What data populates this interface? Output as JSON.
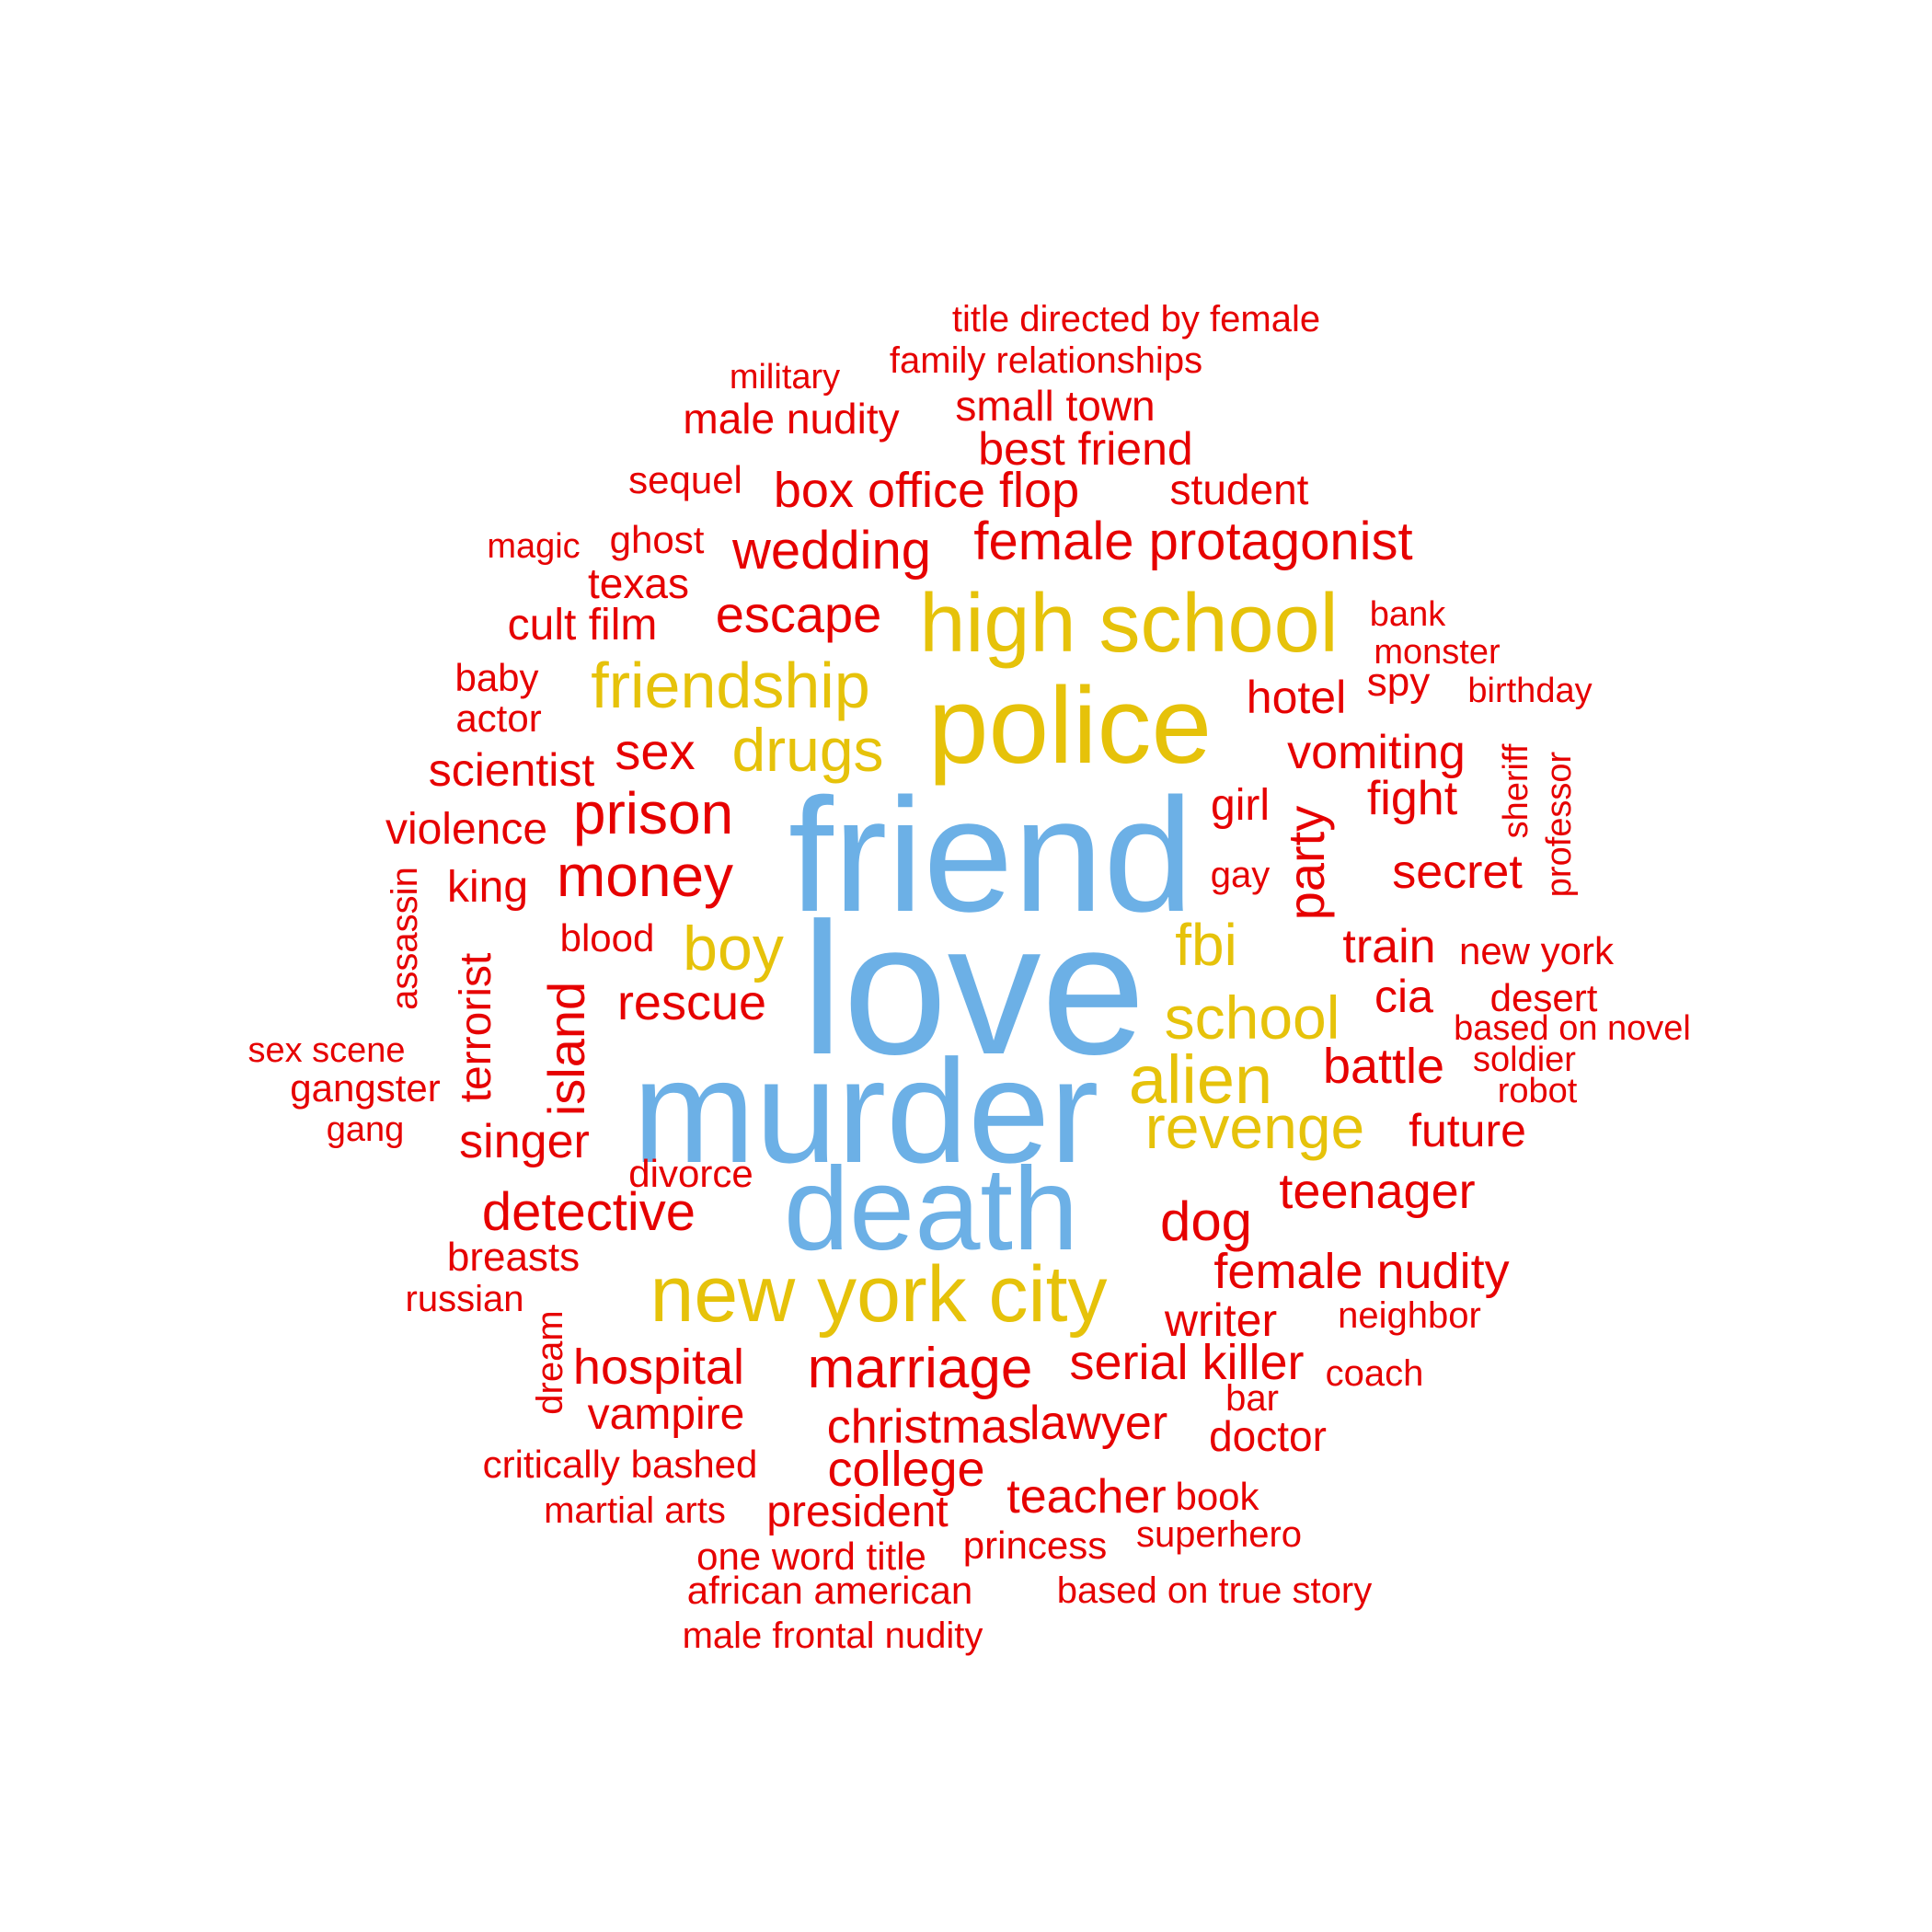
{
  "colors": {
    "tier1": "#6cb0e6",
    "tier2": "#e6c20a",
    "tier3": "#e60000"
  },
  "words": [
    {
      "text": "love",
      "tier": 1,
      "size": 5
    },
    {
      "text": "friend",
      "tier": 1,
      "size": 5
    },
    {
      "text": "murder",
      "tier": 1,
      "size": 5
    },
    {
      "text": "death",
      "tier": 1,
      "size": 5
    },
    {
      "text": "police",
      "tier": 2,
      "size": 4
    },
    {
      "text": "high school",
      "tier": 2,
      "size": 4
    },
    {
      "text": "new york city",
      "tier": 2,
      "size": 4
    },
    {
      "text": "friendship",
      "tier": 2,
      "size": 3
    },
    {
      "text": "drugs",
      "tier": 2,
      "size": 3
    },
    {
      "text": "boy",
      "tier": 2,
      "size": 3
    },
    {
      "text": "fbi",
      "tier": 2,
      "size": 3
    },
    {
      "text": "school",
      "tier": 2,
      "size": 3
    },
    {
      "text": "alien",
      "tier": 2,
      "size": 3
    },
    {
      "text": "revenge",
      "tier": 2,
      "size": 3
    },
    {
      "text": "title directed by female",
      "tier": 3,
      "size": 1
    },
    {
      "text": "family relationships",
      "tier": 3,
      "size": 1
    },
    {
      "text": "military",
      "tier": 3,
      "size": 1
    },
    {
      "text": "male nudity",
      "tier": 3,
      "size": 2
    },
    {
      "text": "small town",
      "tier": 3,
      "size": 2
    },
    {
      "text": "best friend",
      "tier": 3,
      "size": 2
    },
    {
      "text": "sequel",
      "tier": 3,
      "size": 1
    },
    {
      "text": "box office flop",
      "tier": 3,
      "size": 2
    },
    {
      "text": "student",
      "tier": 3,
      "size": 2
    },
    {
      "text": "magic",
      "tier": 3,
      "size": 1
    },
    {
      "text": "ghost",
      "tier": 3,
      "size": 1
    },
    {
      "text": "wedding",
      "tier": 3,
      "size": 2
    },
    {
      "text": "female protagonist",
      "tier": 3,
      "size": 2
    },
    {
      "text": "texas",
      "tier": 3,
      "size": 2
    },
    {
      "text": "escape",
      "tier": 3,
      "size": 2
    },
    {
      "text": "cult film",
      "tier": 3,
      "size": 2
    },
    {
      "text": "bank",
      "tier": 3,
      "size": 1
    },
    {
      "text": "monster",
      "tier": 3,
      "size": 1
    },
    {
      "text": "baby",
      "tier": 3,
      "size": 1
    },
    {
      "text": "spy",
      "tier": 3,
      "size": 1
    },
    {
      "text": "birthday",
      "tier": 3,
      "size": 1
    },
    {
      "text": "hotel",
      "tier": 3,
      "size": 2
    },
    {
      "text": "actor",
      "tier": 3,
      "size": 1
    },
    {
      "text": "sex",
      "tier": 3,
      "size": 2
    },
    {
      "text": "scientist",
      "tier": 3,
      "size": 2
    },
    {
      "text": "vomiting",
      "tier": 3,
      "size": 2
    },
    {
      "text": "sheriff",
      "tier": 3,
      "size": 1
    },
    {
      "text": "professor",
      "tier": 3,
      "size": 1
    },
    {
      "text": "fight",
      "tier": 3,
      "size": 2
    },
    {
      "text": "prison",
      "tier": 3,
      "size": 2
    },
    {
      "text": "girl",
      "tier": 3,
      "size": 2
    },
    {
      "text": "violence",
      "tier": 3,
      "size": 2
    },
    {
      "text": "party",
      "tier": 3,
      "size": 2
    },
    {
      "text": "money",
      "tier": 3,
      "size": 2
    },
    {
      "text": "king",
      "tier": 3,
      "size": 2
    },
    {
      "text": "gay",
      "tier": 3,
      "size": 1
    },
    {
      "text": "secret",
      "tier": 3,
      "size": 2
    },
    {
      "text": "assassin",
      "tier": 3,
      "size": 1
    },
    {
      "text": "blood",
      "tier": 3,
      "size": 1
    },
    {
      "text": "train",
      "tier": 3,
      "size": 2
    },
    {
      "text": "new york",
      "tier": 3,
      "size": 1
    },
    {
      "text": "terrorist",
      "tier": 3,
      "size": 2
    },
    {
      "text": "island",
      "tier": 3,
      "size": 2
    },
    {
      "text": "rescue",
      "tier": 3,
      "size": 2
    },
    {
      "text": "cia",
      "tier": 3,
      "size": 2
    },
    {
      "text": "desert",
      "tier": 3,
      "size": 1
    },
    {
      "text": "based on novel",
      "tier": 3,
      "size": 1
    },
    {
      "text": "sex scene",
      "tier": 3,
      "size": 1
    },
    {
      "text": "soldier",
      "tier": 3,
      "size": 1
    },
    {
      "text": "battle",
      "tier": 3,
      "size": 2
    },
    {
      "text": "gangster",
      "tier": 3,
      "size": 1
    },
    {
      "text": "robot",
      "tier": 3,
      "size": 1
    },
    {
      "text": "gang",
      "tier": 3,
      "size": 1
    },
    {
      "text": "future",
      "tier": 3,
      "size": 2
    },
    {
      "text": "singer",
      "tier": 3,
      "size": 2
    },
    {
      "text": "divorce",
      "tier": 3,
      "size": 1
    },
    {
      "text": "teenager",
      "tier": 3,
      "size": 2
    },
    {
      "text": "detective",
      "tier": 3,
      "size": 2
    },
    {
      "text": "dog",
      "tier": 3,
      "size": 2
    },
    {
      "text": "breasts",
      "tier": 3,
      "size": 1
    },
    {
      "text": "female nudity",
      "tier": 3,
      "size": 2
    },
    {
      "text": "russian",
      "tier": 3,
      "size": 1
    },
    {
      "text": "writer",
      "tier": 3,
      "size": 2
    },
    {
      "text": "neighbor",
      "tier": 3,
      "size": 1
    },
    {
      "text": "dream",
      "tier": 3,
      "size": 1
    },
    {
      "text": "hospital",
      "tier": 3,
      "size": 2
    },
    {
      "text": "marriage",
      "tier": 3,
      "size": 2
    },
    {
      "text": "serial killer",
      "tier": 3,
      "size": 2
    },
    {
      "text": "coach",
      "tier": 3,
      "size": 1
    },
    {
      "text": "bar",
      "tier": 3,
      "size": 1
    },
    {
      "text": "vampire",
      "tier": 3,
      "size": 2
    },
    {
      "text": "christmas",
      "tier": 3,
      "size": 2
    },
    {
      "text": "lawyer",
      "tier": 3,
      "size": 2
    },
    {
      "text": "doctor",
      "tier": 3,
      "size": 2
    },
    {
      "text": "critically bashed",
      "tier": 3,
      "size": 1
    },
    {
      "text": "college",
      "tier": 3,
      "size": 2
    },
    {
      "text": "martial arts",
      "tier": 3,
      "size": 1
    },
    {
      "text": "president",
      "tier": 3,
      "size": 2
    },
    {
      "text": "teacher",
      "tier": 3,
      "size": 2
    },
    {
      "text": "book",
      "tier": 3,
      "size": 1
    },
    {
      "text": "superhero",
      "tier": 3,
      "size": 1
    },
    {
      "text": "princess",
      "tier": 3,
      "size": 1
    },
    {
      "text": "one word title",
      "tier": 3,
      "size": 1
    },
    {
      "text": "african american",
      "tier": 3,
      "size": 1
    },
    {
      "text": "based on true story",
      "tier": 3,
      "size": 1
    },
    {
      "text": "male frontal nudity",
      "tier": 3,
      "size": 1
    }
  ]
}
